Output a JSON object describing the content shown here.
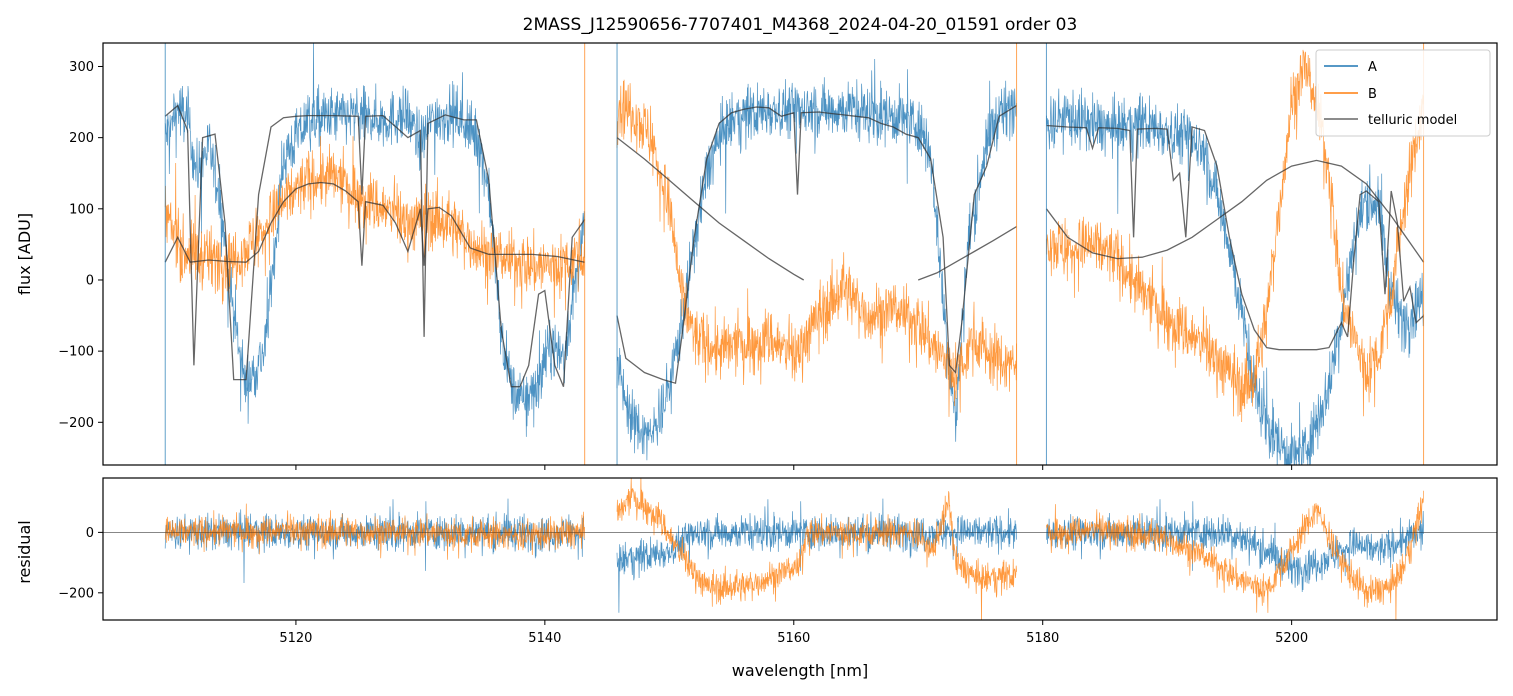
{
  "chart_data": {
    "type": "line",
    "title": "2MASS_J12590656-7707401_M4368_2024-04-20_01591  order 03",
    "xlabel": "wavelength [nm]",
    "xlim": [
      5104.5,
      5216.5
    ],
    "x_ticks": [
      "5120",
      "5140",
      "5160",
      "5180",
      "5200"
    ],
    "top_panel": {
      "ylabel": "flux [ADU]",
      "ylim": [
        -260,
        333
      ],
      "y_ticks": [
        "300",
        "200",
        "100",
        "0",
        "−100",
        "−200"
      ],
      "legend": {
        "placement": "top-right",
        "entries": [
          "A",
          "B",
          "telluric model"
        ]
      },
      "segments": [
        {
          "x_range": [
            5109.5,
            5143.2
          ],
          "A": {
            "x": [
              5109.5,
              5110.5,
              5111.3,
              5112.0,
              5113.0,
              5114.0,
              5115.0,
              5116.0,
              5117.5,
              5119.0,
              5121.0,
              5123.0,
              5125.0,
              5127.0,
              5129.0,
              5130.0,
              5131.0,
              5133.0,
              5134.5,
              5135.5,
              5136.5,
              5137.5,
              5138.5,
              5139.5,
              5140.5,
              5141.5,
              5142.5,
              5143.2
            ],
            "y": [
              200,
              240,
              230,
              150,
              190,
              100,
              -50,
              -150,
              -100,
              170,
              225,
              230,
              230,
              225,
              230,
              190,
              230,
              230,
              200,
              130,
              -80,
              -160,
              -170,
              -140,
              -90,
              -110,
              0,
              80
            ]
          },
          "B": {
            "x": [
              5109.5,
              5111.0,
              5113.0,
              5115.0,
              5117.0,
              5119.0,
              5121.0,
              5123.0,
              5125.0,
              5127.0,
              5129.0,
              5131.0,
              5133.0,
              5135.0,
              5137.0,
              5139.0,
              5141.0,
              5143.2
            ],
            "y": [
              90,
              40,
              30,
              30,
              60,
              110,
              140,
              145,
              120,
              100,
              80,
              90,
              70,
              40,
              30,
              20,
              20,
              40
            ]
          },
          "model_A": {
            "x": [
              5109.5,
              5110.5,
              5111.3,
              5111.8,
              5112.5,
              5113.5,
              5114.3,
              5115.0,
              5116.0,
              5117.0,
              5118.0,
              5119.0,
              5120.0,
              5121.0,
              5123.0,
              5125.0,
              5125.3,
              5125.6,
              5127.0,
              5129.0,
              5130.0,
              5130.3,
              5130.6,
              5132.0,
              5133.5,
              5134.5,
              5135.5,
              5136.5,
              5137.3,
              5138.0,
              5138.7,
              5139.5,
              5140.0,
              5140.8,
              5141.5,
              5142.2,
              5143.2
            ],
            "y": [
              230,
              245,
              210,
              -120,
              200,
              205,
              80,
              -140,
              -140,
              120,
              215,
              228,
              230,
              231,
              231,
              230,
              120,
              230,
              231,
              200,
              210,
              -80,
              220,
              232,
              225,
              225,
              140,
              -70,
              -150,
              -150,
              -120,
              -20,
              -15,
              -120,
              -150,
              60,
              85
            ]
          },
          "model_B": {
            "x": [
              5109.5,
              5110.5,
              5111.5,
              5113.0,
              5114.5,
              5116.0,
              5117.0,
              5118.0,
              5119.0,
              5120.0,
              5121.0,
              5122.0,
              5123.0,
              5124.0,
              5125.0,
              5125.3,
              5125.6,
              5127.0,
              5128.0,
              5129.0,
              5130.0,
              5130.3,
              5130.6,
              5131.5,
              5132.5,
              5134.0,
              5135.5,
              5137.0,
              5139.0,
              5141.0,
              5143.2
            ],
            "y": [
              25,
              60,
              25,
              28,
              26,
              25,
              40,
              80,
              110,
              128,
              135,
              137,
              135,
              125,
              110,
              20,
              110,
              105,
              80,
              40,
              100,
              20,
              100,
              102,
              90,
              45,
              36,
              36,
              36,
              33,
              25
            ]
          }
        },
        {
          "x_range": [
            5145.8,
            5177.9
          ],
          "A": {
            "x": [
              5145.8,
              5147.0,
              5148.5,
              5150.0,
              5151.0,
              5152.0,
              5153.0,
              5154.0,
              5155.0,
              5156.0,
              5158.0,
              5160.0,
              5162.0,
              5164.0,
              5166.0,
              5168.0,
              5170.0,
              5171.0,
              5172.0,
              5173.0,
              5174.0,
              5175.0,
              5176.0,
              5177.9
            ],
            "y": [
              -120,
              -200,
              -220,
              -150,
              -60,
              50,
              150,
              200,
              220,
              230,
              240,
              240,
              240,
              240,
              235,
              230,
              220,
              180,
              -30,
              -200,
              50,
              150,
              220,
              250
            ]
          },
          "B": {
            "x": [
              5145.8,
              5147.0,
              5148.5,
              5150.0,
              5151.0,
              5152.0,
              5154.0,
              5156.0,
              5158.0,
              5160.0,
              5162.0,
              5164.0,
              5166.0,
              5168.0,
              5170.0,
              5171.5,
              5173.0,
              5174.5,
              5176.0,
              5177.9
            ],
            "y": [
              250,
              240,
              200,
              100,
              -20,
              -80,
              -100,
              -90,
              -80,
              -110,
              -50,
              -10,
              -50,
              -40,
              -60,
              -100,
              -130,
              -80,
              -110,
              -120
            ]
          },
          "model_A": {
            "x": [
              5145.8,
              5146.5,
              5148.0,
              5149.5,
              5150.5,
              5151.0,
              5152.0,
              5153.0,
              5154.0,
              5155.0,
              5156.0,
              5157.0,
              5158.0,
              5159.0,
              5160.0,
              5160.3,
              5160.6,
              5162.0,
              5163.0,
              5164.0,
              5165.0,
              5166.0,
              5167.0,
              5168.0,
              5169.0,
              5170.0,
              5171.0,
              5172.0,
              5172.5,
              5173.0,
              5173.5,
              5174.5,
              5175.5,
              5176.5,
              5177.9
            ],
            "y": [
              -50,
              -110,
              -130,
              -140,
              -145,
              -80,
              60,
              170,
              220,
              235,
              240,
              243,
              242,
              230,
              235,
              120,
              235,
              236,
              234,
              232,
              230,
              228,
              220,
              215,
              205,
              200,
              170,
              60,
              -120,
              -130,
              -60,
              120,
              160,
              230,
              245
            ]
          },
          "model_B": {
            "x": [
              5145.8,
              5148.0,
              5150.0,
              5152.0,
              5154.0,
              5156.0,
              5158.0,
              5160.0,
              5160.8
            ],
            "y": [
              200,
              170,
              140,
              110,
              80,
              55,
              30,
              8,
              0
            ]
          },
          "model_B2": {
            "x": [
              5170.0,
              5171.5,
              5173.0,
              5174.5,
              5176.0,
              5177.9
            ],
            "y": [
              0,
              10,
              25,
              40,
              55,
              75
            ]
          }
        },
        {
          "x_range": [
            5180.3,
            5210.6
          ],
          "A": {
            "x": [
              5180.3,
              5182.0,
              5184.0,
              5186.0,
              5188.0,
              5190.0,
              5192.0,
              5193.0,
              5194.0,
              5195.0,
              5196.0,
              5197.0,
              5198.0,
              5199.0,
              5200.0,
              5201.0,
              5202.0,
              5203.0,
              5204.0,
              5205.0,
              5206.0,
              5207.0,
              5208.0,
              5209.0,
              5210.6
            ],
            "y": [
              220,
              230,
              220,
              210,
              220,
              210,
              200,
              180,
              120,
              50,
              -50,
              -150,
              -200,
              -230,
              -250,
              -240,
              -200,
              -150,
              -50,
              50,
              120,
              100,
              -20,
              -60,
              -20
            ]
          },
          "B": {
            "x": [
              5180.3,
              5182.0,
              5184.0,
              5186.0,
              5188.0,
              5190.0,
              5192.0,
              5194.0,
              5196.0,
              5197.0,
              5198.0,
              5199.0,
              5200.0,
              5201.0,
              5202.0,
              5203.0,
              5204.0,
              5205.0,
              5206.0,
              5207.0,
              5208.0,
              5209.0,
              5210.6
            ],
            "y": [
              60,
              40,
              50,
              30,
              -20,
              -50,
              -80,
              -110,
              -150,
              -140,
              -50,
              100,
              250,
              300,
              250,
              150,
              -20,
              -80,
              -130,
              -100,
              -20,
              100,
              250
            ]
          },
          "model_A": {
            "x": [
              5180.3,
              5182.0,
              5183.5,
              5184.0,
              5184.5,
              5186.0,
              5187.0,
              5187.3,
              5187.6,
              5189.0,
              5190.0,
              5190.5,
              5191.0,
              5191.5,
              5192.0,
              5193.0,
              5194.0,
              5195.0,
              5196.0,
              5197.0,
              5198.0,
              5199.0,
              5200.0,
              5201.0,
              5202.0,
              5203.0,
              5204.0,
              5204.5,
              5205.0,
              5205.5,
              5206.0,
              5207.0,
              5207.5,
              5208.0,
              5208.5,
              5209.0,
              5209.5,
              5210.0,
              5210.6
            ],
            "y": [
              217,
              215,
              214,
              185,
              214,
              213,
              210,
              60,
              212,
              213,
              212,
              140,
              150,
              60,
              215,
              210,
              160,
              60,
              -20,
              -70,
              -95,
              -98,
              -98,
              -98,
              -98,
              -95,
              -60,
              -80,
              30,
              120,
              125,
              110,
              -20,
              125,
              80,
              -30,
              -10,
              -60,
              -50
            ]
          },
          "model_B": {
            "x": [
              5180.3,
              5182.0,
              5184.0,
              5186.0,
              5188.0,
              5190.0,
              5192.0,
              5194.0,
              5196.0,
              5198.0,
              5200.0,
              5202.0,
              5204.0,
              5206.0,
              5208.0,
              5210.6
            ],
            "y": [
              100,
              60,
              38,
              30,
              32,
              42,
              60,
              85,
              110,
              140,
              160,
              168,
              160,
              135,
              90,
              25
            ]
          }
        }
      ]
    },
    "bottom_panel": {
      "ylabel": "residual",
      "ylim": [
        -290,
        180
      ],
      "y_ticks": [
        "0",
        "−200"
      ],
      "zero_line": true,
      "segments": [
        {
          "x_range": [
            5109.5,
            5143.2
          ],
          "A_level": {
            "x": [
              5109.5,
              5143.2
            ],
            "y": [
              0,
              0
            ]
          },
          "B_level": {
            "x": [
              5109.5,
              5120,
              5130,
              5138,
              5143.2
            ],
            "y": [
              0,
              5,
              0,
              -10,
              0
            ]
          }
        },
        {
          "x_range": [
            5145.8,
            5177.9
          ],
          "A_level": {
            "x": [
              5145.8,
              5150,
              5152,
              5177.9
            ],
            "y": [
              -100,
              -60,
              0,
              0
            ]
          },
          "B_level": {
            "x": [
              5145.8,
              5147,
              5149,
              5151,
              5153,
              5156,
              5158,
              5160.5,
              5161,
              5170,
              5171,
              5172.5,
              5173,
              5175,
              5177.9
            ],
            "y": [
              50,
              120,
              60,
              -80,
              -180,
              -180,
              -150,
              -110,
              0,
              0,
              -70,
              100,
              -100,
              -160,
              -140
            ]
          }
        },
        {
          "x_range": [
            5180.3,
            5210.6
          ],
          "A_level": {
            "x": [
              5180.3,
              5195,
              5198,
              5200,
              5202,
              5205,
              5207,
              5210.6
            ],
            "y": [
              0,
              0,
              -60,
              -120,
              -100,
              -40,
              -60,
              0
            ]
          },
          "B_level": {
            "x": [
              5180.3,
              5185,
              5190,
              5193,
              5196,
              5198,
              5200,
              5202,
              5204,
              5206,
              5208,
              5209,
              5210.6
            ],
            "y": [
              0,
              10,
              -20,
              -80,
              -160,
              -190,
              -60,
              80,
              -100,
              -200,
              -180,
              -120,
              100
            ]
          }
        }
      ]
    },
    "series": [
      {
        "name": "A",
        "color": "#1f77b4"
      },
      {
        "name": "B",
        "color": "#ff7f0e"
      },
      {
        "name": "telluric model",
        "color": "#333333"
      }
    ]
  }
}
